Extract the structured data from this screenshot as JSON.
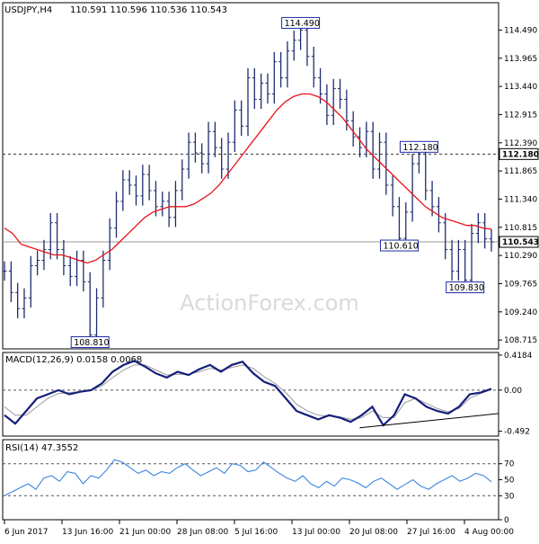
{
  "header": {
    "symbol": "USDJPY,H4",
    "ohlc": "110.591 110.596 110.536 110.543"
  },
  "watermark": "ActionForex.com",
  "colors": {
    "price_line": "#1f2d6e",
    "ma": "#e8141b",
    "macd_main": "#16207a",
    "macd_signal": "#9a9a9a",
    "rsi": "#3a86e0",
    "axis": "#000000",
    "grid_dash": "#555555",
    "label_border": "#1c2aa8"
  },
  "x_axis": {
    "labels": [
      "6 Jun 2017",
      "13 Jun 16:00",
      "21 Jun 00:00",
      "28 Jun 08:00",
      "5 Jul 16:00",
      "13 Jul 00:00",
      "20 Jul 08:00",
      "27 Jul 16:00",
      "4 Aug 00:00"
    ]
  },
  "chart_data": [
    {
      "type": "line",
      "panel": "price",
      "title": "USDJPY,H4",
      "ylim": [
        108.55,
        115.0
      ],
      "y_ticks": [
        "114.490",
        "113.965",
        "113.440",
        "112.915",
        "112.390",
        "111.865",
        "111.340",
        "110.815",
        "110.290",
        "109.765",
        "109.240",
        "108.715"
      ],
      "series": [
        {
          "name": "",
          "values": [
            110.0,
            109.6,
            109.3,
            109.5,
            110.1,
            110.2,
            110.4,
            110.9,
            110.4,
            110.1,
            109.9,
            110.2,
            109.8,
            108.81,
            109.5,
            110.2,
            110.8,
            111.3,
            111.7,
            111.6,
            111.4,
            111.8,
            111.5,
            111.2,
            111.3,
            111.0,
            111.5,
            111.9,
            112.4,
            112.2,
            112.0,
            112.6,
            112.3,
            111.9,
            112.4,
            113.0,
            112.7,
            113.6,
            113.2,
            113.5,
            113.3,
            113.9,
            113.6,
            114.1,
            114.3,
            114.49,
            114.0,
            113.6,
            113.3,
            112.9,
            113.4,
            113.2,
            112.8,
            112.5,
            112.3,
            112.6,
            111.9,
            112.4,
            111.6,
            111.2,
            110.61,
            111.1,
            112.0,
            112.18,
            111.5,
            111.2,
            110.9,
            110.4,
            110.0,
            110.4,
            109.83,
            110.7,
            110.9,
            110.6,
            110.543
          ]
        },
        {
          "name": "",
          "values": [
            110.8,
            110.7,
            110.5,
            110.45,
            110.4,
            110.35,
            110.3,
            110.3,
            110.25,
            110.2,
            110.15,
            110.2,
            110.3,
            110.4,
            110.55,
            110.7,
            110.85,
            111.0,
            111.1,
            111.15,
            111.2,
            111.2,
            111.2,
            111.25,
            111.35,
            111.45,
            111.6,
            111.8,
            112.0,
            112.2,
            112.4,
            112.6,
            112.8,
            113.0,
            113.15,
            113.25,
            113.3,
            113.3,
            113.25,
            113.15,
            113.0,
            112.85,
            112.65,
            112.45,
            112.25,
            112.1,
            111.95,
            111.8,
            111.65,
            111.5,
            111.35,
            111.2,
            111.1,
            111.0,
            110.95,
            110.9,
            110.85,
            110.85,
            110.8,
            110.78
          ]
        }
      ],
      "annotations": [
        {
          "label": "114.490",
          "value": 114.49
        },
        {
          "label": "112.180",
          "value": 112.18
        },
        {
          "label": "110.610",
          "value": 110.61
        },
        {
          "label": "109.830",
          "value": 109.83
        },
        {
          "label": "108.810",
          "value": 108.81
        }
      ],
      "horizontal_lines": [
        {
          "value": 112.18,
          "label": "112.180",
          "style": "dashed"
        },
        {
          "value": 110.543,
          "label": "110.543",
          "style": "solid"
        }
      ],
      "grid": false
    },
    {
      "type": "line",
      "panel": "macd",
      "title": "MACD(12,26,9) 0.0158 0.0068",
      "ylim": [
        -0.55,
        0.45
      ],
      "y_ticks": [
        "0.4184",
        "0.00",
        "-0.492"
      ],
      "series": [
        {
          "name": "",
          "values": [
            -0.3,
            -0.4,
            -0.25,
            -0.1,
            -0.05,
            0.0,
            -0.05,
            -0.02,
            0.0,
            0.08,
            0.22,
            0.3,
            0.35,
            0.28,
            0.2,
            0.15,
            0.22,
            0.18,
            0.25,
            0.3,
            0.22,
            0.3,
            0.34,
            0.2,
            0.1,
            0.05,
            -0.1,
            -0.25,
            -0.3,
            -0.35,
            -0.3,
            -0.33,
            -0.38,
            -0.3,
            -0.2,
            -0.42,
            -0.3,
            -0.05,
            -0.1,
            -0.2,
            -0.25,
            -0.28,
            -0.2,
            -0.05,
            -0.03,
            0.0158
          ]
        },
        {
          "name": "",
          "values": [
            -0.2,
            -0.3,
            -0.3,
            -0.2,
            -0.1,
            -0.04,
            -0.03,
            -0.02,
            0.0,
            0.05,
            0.15,
            0.24,
            0.3,
            0.3,
            0.24,
            0.18,
            0.19,
            0.19,
            0.22,
            0.26,
            0.24,
            0.27,
            0.3,
            0.26,
            0.16,
            0.08,
            -0.03,
            -0.17,
            -0.25,
            -0.3,
            -0.31,
            -0.32,
            -0.35,
            -0.33,
            -0.25,
            -0.33,
            -0.33,
            -0.15,
            -0.1,
            -0.16,
            -0.22,
            -0.26,
            -0.22,
            -0.1,
            -0.04,
            0.0068
          ]
        }
      ],
      "trendline": {
        "x": [
          0.72,
          1.0
        ],
        "y": [
          -0.45,
          -0.28
        ]
      }
    },
    {
      "type": "line",
      "panel": "rsi",
      "title": "RSI(14) 47.3552",
      "ylim": [
        0,
        100
      ],
      "y_ticks": [
        "70",
        "50",
        "30",
        "0"
      ],
      "levels": [
        70,
        30
      ],
      "series": [
        {
          "name": "",
          "values": [
            30,
            35,
            40,
            45,
            38,
            52,
            55,
            48,
            60,
            58,
            45,
            55,
            52,
            62,
            75,
            72,
            65,
            58,
            62,
            55,
            60,
            58,
            65,
            70,
            62,
            55,
            60,
            65,
            58,
            70,
            68,
            60,
            62,
            72,
            65,
            58,
            52,
            48,
            55,
            45,
            40,
            48,
            42,
            52,
            50,
            46,
            40,
            48,
            52,
            45,
            38,
            44,
            50,
            42,
            38,
            45,
            50,
            55,
            48,
            52,
            58,
            55,
            47.36
          ]
        }
      ]
    }
  ]
}
